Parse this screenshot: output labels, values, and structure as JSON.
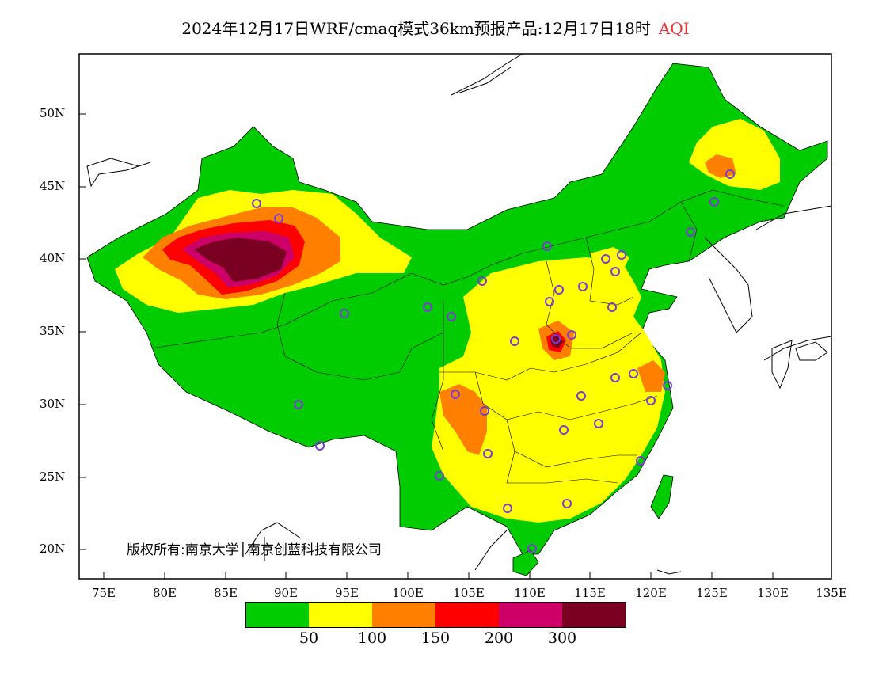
{
  "title": {
    "main": "2024年12月17日WRF/cmaq模式36km预报产品:12月17日18时",
    "variable": "AQI"
  },
  "copyright": "版权所有:南京大学│南京创蓝科技有限公司",
  "colors": {
    "good": "#00cc00",
    "moderate": "#ffff00",
    "unhealthy_sensitive": "#ff8000",
    "unhealthy": "#ff0000",
    "very_unhealthy": "#cc0066",
    "hazardous": "#7a0022",
    "site_marker": "#7a3cd6"
  },
  "legend": {
    "colors": [
      "#00cc00",
      "#ffff00",
      "#ff8000",
      "#ff0000",
      "#cc0066",
      "#7a0022"
    ],
    "labels": [
      "50",
      "100",
      "150",
      "200",
      "300"
    ]
  },
  "axes": {
    "lat_ticks": [
      "50N",
      "45N",
      "40N",
      "35N",
      "30N",
      "25N",
      "20N"
    ],
    "lon_ticks": [
      "75E",
      "80E",
      "85E",
      "90E",
      "95E",
      "100E",
      "105E",
      "110E",
      "115E",
      "120E",
      "125E",
      "130E",
      "135E"
    ]
  }
}
